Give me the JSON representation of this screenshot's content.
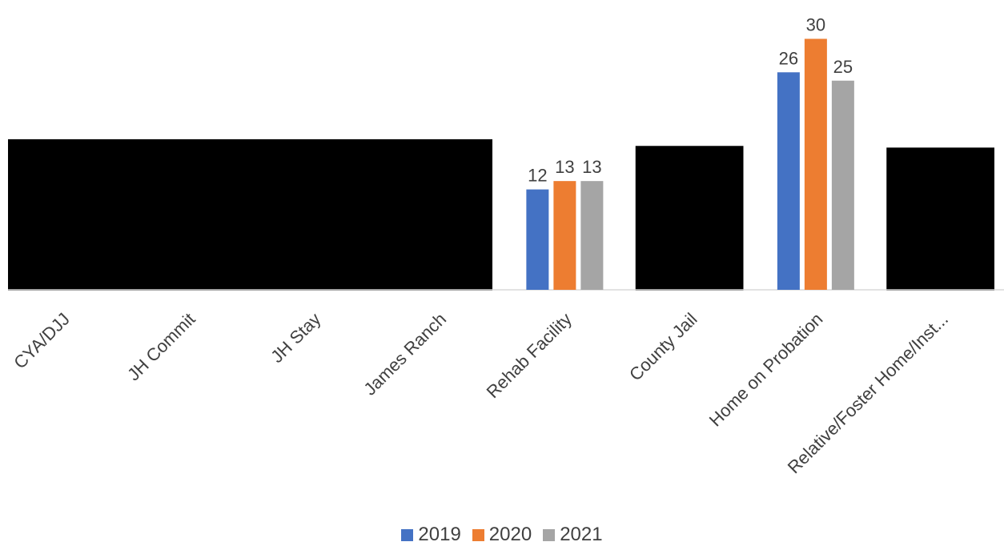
{
  "chart_data": {
    "type": "bar",
    "categories": [
      "CYA/DJJ",
      "JH Commit",
      "JH Stay",
      "James Ranch",
      "Rehab Facility",
      "County Jail",
      "Home on Probation",
      "Relative/Foster Home/Inst..."
    ],
    "series": [
      {
        "name": "2019",
        "color": "#4472C4",
        "values": [
          null,
          null,
          null,
          null,
          12,
          null,
          26,
          null
        ]
      },
      {
        "name": "2020",
        "color": "#ED7D31",
        "values": [
          null,
          null,
          null,
          null,
          13,
          null,
          30,
          null
        ]
      },
      {
        "name": "2021",
        "color": "#A5A5A5",
        "values": [
          null,
          null,
          null,
          null,
          13,
          null,
          25,
          null
        ]
      }
    ],
    "data_labels": [
      {
        "category": "Rehab Facility",
        "labels": [
          "12",
          "13",
          "13"
        ]
      },
      {
        "category": "Home on Probation",
        "labels": [
          "26",
          "30",
          "25"
        ]
      }
    ],
    "redacted_blocks": [
      {
        "from_category": "CYA/DJJ",
        "to_category": "James Ranch",
        "top_value": 18
      },
      {
        "from_category": "County Jail",
        "to_category": "County Jail",
        "top_value": 17.2
      },
      {
        "from_category": "Relative/Foster Home/Inst...",
        "to_category": "Relative/Foster Home/Inst...",
        "top_value": 17
      }
    ],
    "ylim": [
      0,
      30
    ],
    "grid": false,
    "legend_position": "bottom",
    "redaction_color": "#000000"
  }
}
